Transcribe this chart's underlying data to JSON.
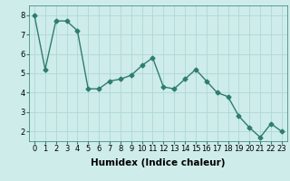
{
  "x": [
    0,
    1,
    2,
    3,
    4,
    5,
    6,
    7,
    8,
    9,
    10,
    11,
    12,
    13,
    14,
    15,
    16,
    17,
    18,
    19,
    20,
    21,
    22,
    23
  ],
  "y": [
    8.0,
    5.2,
    7.7,
    7.7,
    7.2,
    4.2,
    4.2,
    4.6,
    4.7,
    4.9,
    5.4,
    5.8,
    4.3,
    4.2,
    4.7,
    5.2,
    4.6,
    4.0,
    3.8,
    2.8,
    2.2,
    1.7,
    2.4,
    2.0
  ],
  "xlabel": "Humidex (Indice chaleur)",
  "line_color": "#2e7d6e",
  "marker": "D",
  "marker_size": 2.5,
  "bg_color": "#ceecea",
  "grid_color": "#aed8d4",
  "ylim": [
    1.5,
    8.5
  ],
  "xlim": [
    -0.5,
    23.5
  ],
  "yticks": [
    2,
    3,
    4,
    5,
    6,
    7,
    8
  ],
  "xticks": [
    0,
    1,
    2,
    3,
    4,
    5,
    6,
    7,
    8,
    9,
    10,
    11,
    12,
    13,
    14,
    15,
    16,
    17,
    18,
    19,
    20,
    21,
    22,
    23
  ],
  "xlabel_fontsize": 7.5,
  "tick_fontsize": 6.0,
  "line_width": 1.0
}
